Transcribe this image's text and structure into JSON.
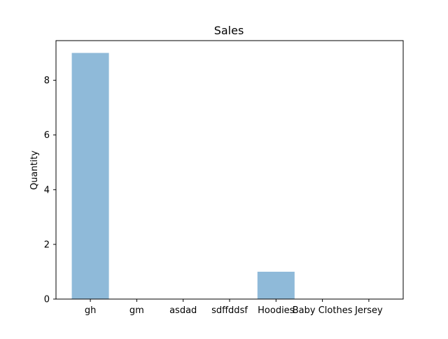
{
  "chart_data": {
    "type": "bar",
    "title": "Sales",
    "xlabel": "",
    "ylabel": "Quantity",
    "categories": [
      "gh",
      "gm",
      "asdad",
      "sdffddsf",
      "Hoodies",
      "Baby Clothes",
      "Jersey"
    ],
    "values": [
      9,
      0,
      0,
      0,
      1,
      0,
      0
    ],
    "ylim": [
      0,
      9.45
    ],
    "yticks": [
      0,
      2,
      4,
      6,
      8
    ],
    "grid": false,
    "legend": "none",
    "bar_color": "#8fbad9",
    "bar_alpha": 1.0
  }
}
